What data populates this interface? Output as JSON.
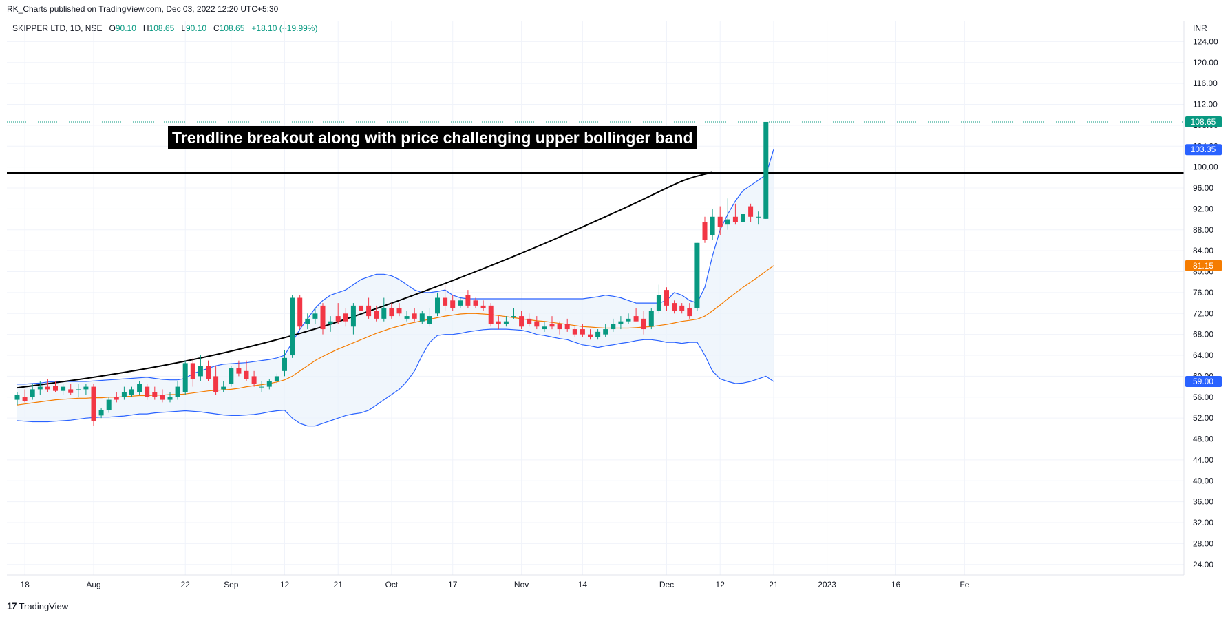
{
  "header": {
    "publisher_line": "RK_Charts published on TradingView.com, Dec 03, 2022 12:20 UTC+5:30",
    "currency": "INR"
  },
  "legend": {
    "symbol": "SKIPPER LTD, 1D, NSE",
    "open_label": "O",
    "open": "90.10",
    "high_label": "H",
    "high": "108.65",
    "low_label": "L",
    "low": "90.10",
    "close_label": "C",
    "close": "108.65",
    "change": "+18.10 (+19.99%)"
  },
  "footer": {
    "brand": "TradingView",
    "logo_glyph": "17"
  },
  "colors": {
    "up": "#089981",
    "down": "#f23645",
    "bb": "#2962ff",
    "bb_fill": "#eaf2fb",
    "basis": "#f57c00",
    "trend": "#000000",
    "grid": "#f0f3fa"
  },
  "chart_data": {
    "type": "candlestick",
    "title": "Trendline breakout along with price challenging upper bollinger band",
    "ylim": [
      22,
      128
    ],
    "y_ticks": [
      "24.00",
      "28.00",
      "32.00",
      "36.00",
      "40.00",
      "44.00",
      "48.00",
      "52.00",
      "56.00",
      "60.00",
      "64.00",
      "68.00",
      "72.00",
      "76.00",
      "80.00",
      "84.00",
      "88.00",
      "92.00",
      "96.00",
      "100.00",
      "104.00",
      "108.00",
      "112.00",
      "116.00",
      "120.00",
      "124.00"
    ],
    "x_ticks": [
      {
        "label": "18",
        "i": 1
      },
      {
        "label": "Aug",
        "i": 10
      },
      {
        "label": "22",
        "i": 22
      },
      {
        "label": "Sep",
        "i": 28
      },
      {
        "label": "12",
        "i": 35
      },
      {
        "label": "21",
        "i": 42
      },
      {
        "label": "Oct",
        "i": 49
      },
      {
        "label": "17",
        "i": 57
      },
      {
        "label": "Nov",
        "i": 66
      },
      {
        "label": "14",
        "i": 74
      },
      {
        "label": "Dec",
        "i": 85
      },
      {
        "label": "12",
        "i": 92
      },
      {
        "label": "21",
        "i": 99
      },
      {
        "label": "2023",
        "i": 106
      },
      {
        "label": "16",
        "i": 115
      },
      {
        "label": "Fe",
        "i": 124
      }
    ],
    "price_labels": [
      {
        "text": "108.65",
        "value": 108.65,
        "color": "#089981"
      },
      {
        "text": "103.35",
        "value": 103.35,
        "color": "#2962ff"
      },
      {
        "text": "81.15",
        "value": 81.15,
        "color": "#f57c00"
      },
      {
        "text": "59.00",
        "value": 59.0,
        "color": "#2962ff"
      }
    ],
    "horizontal_line": 98.9,
    "dotted_close": 108.65,
    "candles": [
      {
        "o": 55.5,
        "h": 57.0,
        "l": 54.5,
        "c": 56.5
      },
      {
        "o": 56.0,
        "h": 57.5,
        "l": 55.0,
        "c": 55.2
      },
      {
        "o": 56.0,
        "h": 58.5,
        "l": 55.5,
        "c": 57.5
      },
      {
        "o": 57.5,
        "h": 59.0,
        "l": 56.5,
        "c": 58.0
      },
      {
        "o": 58.0,
        "h": 59.5,
        "l": 57.0,
        "c": 57.5
      },
      {
        "o": 58.2,
        "h": 59.0,
        "l": 57.0,
        "c": 57.2
      },
      {
        "o": 57.2,
        "h": 58.5,
        "l": 56.5,
        "c": 58.0
      },
      {
        "o": 57.5,
        "h": 58.5,
        "l": 56.5,
        "c": 56.8
      },
      {
        "o": 57.5,
        "h": 58.5,
        "l": 56.0,
        "c": 57.5
      },
      {
        "o": 57.5,
        "h": 58.5,
        "l": 56.5,
        "c": 58.0
      },
      {
        "o": 58.0,
        "h": 58.5,
        "l": 50.5,
        "c": 51.5
      },
      {
        "o": 52.5,
        "h": 54.0,
        "l": 52.0,
        "c": 53.5
      },
      {
        "o": 53.5,
        "h": 56.0,
        "l": 53.0,
        "c": 55.5
      },
      {
        "o": 56.0,
        "h": 57.0,
        "l": 55.0,
        "c": 55.5
      },
      {
        "o": 56.0,
        "h": 58.0,
        "l": 55.5,
        "c": 57.0
      },
      {
        "o": 56.5,
        "h": 58.0,
        "l": 56.0,
        "c": 57.5
      },
      {
        "o": 57.0,
        "h": 59.0,
        "l": 56.5,
        "c": 58.5
      },
      {
        "o": 58.0,
        "h": 58.5,
        "l": 55.5,
        "c": 56.0
      },
      {
        "o": 57.0,
        "h": 58.0,
        "l": 55.5,
        "c": 56.0
      },
      {
        "o": 56.5,
        "h": 57.5,
        "l": 55.0,
        "c": 55.5
      },
      {
        "o": 55.5,
        "h": 57.0,
        "l": 55.0,
        "c": 56.0
      },
      {
        "o": 56.0,
        "h": 59.0,
        "l": 55.5,
        "c": 58.0
      },
      {
        "o": 57.0,
        "h": 63.0,
        "l": 56.5,
        "c": 62.5
      },
      {
        "o": 62.5,
        "h": 63.5,
        "l": 58.0,
        "c": 59.5
      },
      {
        "o": 60.0,
        "h": 64.0,
        "l": 59.0,
        "c": 62.0
      },
      {
        "o": 62.0,
        "h": 63.0,
        "l": 59.0,
        "c": 59.5
      },
      {
        "o": 60.0,
        "h": 62.0,
        "l": 56.5,
        "c": 57.0
      },
      {
        "o": 57.5,
        "h": 59.0,
        "l": 57.0,
        "c": 58.0
      },
      {
        "o": 58.5,
        "h": 62.0,
        "l": 58.0,
        "c": 61.5
      },
      {
        "o": 61.5,
        "h": 63.0,
        "l": 60.0,
        "c": 60.5
      },
      {
        "o": 61.0,
        "h": 63.0,
        "l": 59.0,
        "c": 59.5
      },
      {
        "o": 60.0,
        "h": 61.0,
        "l": 58.0,
        "c": 58.5
      },
      {
        "o": 58.0,
        "h": 59.0,
        "l": 57.0,
        "c": 58.0
      },
      {
        "o": 58.0,
        "h": 59.5,
        "l": 57.5,
        "c": 59.0
      },
      {
        "o": 59.0,
        "h": 60.5,
        "l": 58.5,
        "c": 60.0
      },
      {
        "o": 61.0,
        "h": 65.0,
        "l": 60.0,
        "c": 63.5
      },
      {
        "o": 64.0,
        "h": 75.5,
        "l": 63.5,
        "c": 75.0
      },
      {
        "o": 75.0,
        "h": 75.5,
        "l": 69.0,
        "c": 69.5
      },
      {
        "o": 70.0,
        "h": 72.0,
        "l": 69.0,
        "c": 71.0
      },
      {
        "o": 71.0,
        "h": 73.0,
        "l": 70.0,
        "c": 72.0
      },
      {
        "o": 73.5,
        "h": 74.0,
        "l": 68.0,
        "c": 69.0
      },
      {
        "o": 70.0,
        "h": 71.5,
        "l": 68.5,
        "c": 70.5
      },
      {
        "o": 71.5,
        "h": 74.0,
        "l": 70.0,
        "c": 70.5
      },
      {
        "o": 72.0,
        "h": 73.0,
        "l": 69.5,
        "c": 70.5
      },
      {
        "o": 69.5,
        "h": 74.0,
        "l": 68.0,
        "c": 73.5
      },
      {
        "o": 73.5,
        "h": 75.0,
        "l": 71.5,
        "c": 72.5
      },
      {
        "o": 73.5,
        "h": 75.0,
        "l": 71.0,
        "c": 71.5
      },
      {
        "o": 72.5,
        "h": 73.5,
        "l": 70.5,
        "c": 71.0
      },
      {
        "o": 71.0,
        "h": 75.0,
        "l": 70.5,
        "c": 73.0
      },
      {
        "o": 73.0,
        "h": 74.0,
        "l": 71.0,
        "c": 71.5
      },
      {
        "o": 73.0,
        "h": 74.0,
        "l": 71.5,
        "c": 72.0
      },
      {
        "o": 71.0,
        "h": 72.5,
        "l": 70.5,
        "c": 71.5
      },
      {
        "o": 72.0,
        "h": 73.0,
        "l": 70.5,
        "c": 71.0
      },
      {
        "o": 70.5,
        "h": 72.5,
        "l": 70.0,
        "c": 72.0
      },
      {
        "o": 70.0,
        "h": 73.0,
        "l": 69.5,
        "c": 71.5
      },
      {
        "o": 72.0,
        "h": 76.0,
        "l": 71.5,
        "c": 75.0
      },
      {
        "o": 75.0,
        "h": 77.5,
        "l": 72.5,
        "c": 73.5
      },
      {
        "o": 74.5,
        "h": 75.5,
        "l": 72.5,
        "c": 73.0
      },
      {
        "o": 73.5,
        "h": 75.0,
        "l": 73.0,
        "c": 74.5
      },
      {
        "o": 75.5,
        "h": 76.5,
        "l": 73.0,
        "c": 73.5
      },
      {
        "o": 74.5,
        "h": 75.0,
        "l": 73.0,
        "c": 73.5
      },
      {
        "o": 73.5,
        "h": 74.5,
        "l": 72.5,
        "c": 73.0
      },
      {
        "o": 73.5,
        "h": 74.0,
        "l": 69.5,
        "c": 70.0
      },
      {
        "o": 70.5,
        "h": 71.5,
        "l": 69.0,
        "c": 70.0
      },
      {
        "o": 70.0,
        "h": 71.5,
        "l": 69.5,
        "c": 70.5
      },
      {
        "o": 71.5,
        "h": 73.0,
        "l": 71.0,
        "c": 71.5
      },
      {
        "o": 71.5,
        "h": 72.5,
        "l": 69.0,
        "c": 69.5
      },
      {
        "o": 71.0,
        "h": 72.0,
        "l": 69.5,
        "c": 70.0
      },
      {
        "o": 70.5,
        "h": 71.5,
        "l": 69.0,
        "c": 69.5
      },
      {
        "o": 69.0,
        "h": 70.5,
        "l": 68.5,
        "c": 69.5
      },
      {
        "o": 70.0,
        "h": 71.5,
        "l": 69.0,
        "c": 69.5
      },
      {
        "o": 70.0,
        "h": 70.5,
        "l": 68.0,
        "c": 69.0
      },
      {
        "o": 70.0,
        "h": 71.0,
        "l": 68.5,
        "c": 69.0
      },
      {
        "o": 69.0,
        "h": 69.5,
        "l": 67.5,
        "c": 68.0
      },
      {
        "o": 69.0,
        "h": 70.0,
        "l": 67.5,
        "c": 68.0
      },
      {
        "o": 68.0,
        "h": 69.0,
        "l": 67.0,
        "c": 67.5
      },
      {
        "o": 67.5,
        "h": 69.0,
        "l": 67.0,
        "c": 68.5
      },
      {
        "o": 68.0,
        "h": 70.0,
        "l": 67.5,
        "c": 69.0
      },
      {
        "o": 69.0,
        "h": 71.0,
        "l": 68.5,
        "c": 70.0
      },
      {
        "o": 70.0,
        "h": 71.5,
        "l": 69.0,
        "c": 70.5
      },
      {
        "o": 70.5,
        "h": 72.0,
        "l": 70.0,
        "c": 71.0
      },
      {
        "o": 71.5,
        "h": 73.0,
        "l": 70.5,
        "c": 70.5
      },
      {
        "o": 71.0,
        "h": 72.5,
        "l": 68.0,
        "c": 69.0
      },
      {
        "o": 69.5,
        "h": 73.0,
        "l": 69.0,
        "c": 72.5
      },
      {
        "o": 72.5,
        "h": 77.5,
        "l": 72.0,
        "c": 75.5
      },
      {
        "o": 76.5,
        "h": 77.0,
        "l": 72.5,
        "c": 73.5
      },
      {
        "o": 74.0,
        "h": 74.5,
        "l": 72.0,
        "c": 72.5
      },
      {
        "o": 73.5,
        "h": 74.0,
        "l": 72.0,
        "c": 72.5
      },
      {
        "o": 73.0,
        "h": 74.0,
        "l": 71.0,
        "c": 71.5
      },
      {
        "o": 73.0,
        "h": 85.5,
        "l": 72.5,
        "c": 85.5
      },
      {
        "o": 89.5,
        "h": 90.5,
        "l": 85.5,
        "c": 86.0
      },
      {
        "o": 87.0,
        "h": 92.0,
        "l": 86.0,
        "c": 90.5
      },
      {
        "o": 90.5,
        "h": 92.5,
        "l": 87.0,
        "c": 88.5
      },
      {
        "o": 89.0,
        "h": 94.0,
        "l": 88.0,
        "c": 90.0
      },
      {
        "o": 90.5,
        "h": 93.0,
        "l": 89.0,
        "c": 89.5
      },
      {
        "o": 89.5,
        "h": 93.5,
        "l": 88.5,
        "c": 91.0
      },
      {
        "o": 92.5,
        "h": 93.0,
        "l": 89.5,
        "c": 90.5
      },
      {
        "o": 90.5,
        "h": 91.5,
        "l": 89.0,
        "c": 90.5
      },
      {
        "o": 90.1,
        "h": 108.65,
        "l": 90.1,
        "c": 108.65
      }
    ],
    "series": [
      {
        "name": "BB upper",
        "values": [
          58.5,
          58.5,
          58.6,
          58.7,
          58.9,
          59.0,
          59.0,
          59.0,
          59.0,
          59.0,
          59.1,
          59.2,
          59.3,
          59.4,
          59.5,
          59.6,
          59.7,
          59.8,
          59.6,
          59.4,
          59.3,
          59.3,
          59.6,
          60.5,
          61.0,
          61.5,
          62.0,
          62.3,
          62.4,
          62.5,
          62.6,
          62.8,
          63.0,
          63.2,
          63.5,
          64.0,
          66.5,
          69.0,
          71.0,
          73.0,
          74.5,
          75.5,
          76.0,
          76.5,
          77.5,
          78.5,
          79.0,
          79.5,
          79.5,
          79.2,
          78.5,
          77.5,
          76.5,
          76.0,
          76.0,
          76.2,
          76.5,
          75.5,
          75.0,
          74.8,
          74.8,
          74.8,
          74.8,
          74.8,
          74.8,
          74.8,
          74.8,
          74.8,
          74.8,
          74.8,
          74.8,
          74.8,
          74.8,
          74.8,
          74.8,
          75.0,
          75.2,
          75.5,
          75.3,
          75.0,
          74.5,
          74.0,
          74.0,
          74.0,
          74.0,
          74.5,
          76.0,
          75.5,
          74.5,
          74.0,
          77.0,
          83.0,
          88.0,
          91.0,
          93.5,
          95.5,
          96.5,
          97.5,
          98.5,
          103.35
        ]
      },
      {
        "name": "BB basis",
        "values": [
          54.5,
          54.7,
          54.9,
          55.1,
          55.3,
          55.5,
          55.6,
          55.7,
          55.8,
          55.8,
          55.9,
          55.9,
          56.0,
          56.0,
          56.1,
          56.2,
          56.3,
          56.3,
          56.4,
          56.4,
          56.5,
          56.5,
          56.6,
          56.8,
          57.0,
          57.2,
          57.3,
          57.4,
          57.5,
          57.7,
          58.0,
          58.2,
          58.4,
          58.6,
          58.9,
          59.3,
          60.0,
          61.0,
          62.0,
          63.0,
          63.8,
          64.5,
          65.2,
          65.8,
          66.4,
          67.0,
          67.6,
          68.2,
          68.7,
          69.2,
          69.6,
          70.0,
          70.3,
          70.6,
          70.9,
          71.2,
          71.5,
          71.7,
          71.9,
          72.0,
          72.0,
          71.9,
          71.8,
          71.6,
          71.4,
          71.2,
          71.0,
          70.8,
          70.6,
          70.5,
          70.3,
          70.1,
          69.9,
          69.7,
          69.5,
          69.4,
          69.3,
          69.2,
          69.2,
          69.2,
          69.2,
          69.3,
          69.4,
          69.5,
          69.7,
          69.9,
          70.2,
          70.5,
          70.7,
          70.9,
          71.5,
          72.5,
          73.6,
          74.8,
          75.9,
          77.0,
          78.0,
          79.0,
          80.1,
          81.15
        ]
      },
      {
        "name": "BB lower",
        "values": [
          51.5,
          51.4,
          51.3,
          51.3,
          51.3,
          51.4,
          51.5,
          51.6,
          51.8,
          52.0,
          52.1,
          52.2,
          52.2,
          52.3,
          52.4,
          52.6,
          52.8,
          52.8,
          53.0,
          53.1,
          53.2,
          53.3,
          53.4,
          53.3,
          53.2,
          53.0,
          52.8,
          52.6,
          52.5,
          52.5,
          52.6,
          52.7,
          52.9,
          53.2,
          53.4,
          53.5,
          52.0,
          51.0,
          50.5,
          50.5,
          51.0,
          51.5,
          52.0,
          52.5,
          52.8,
          53.0,
          53.5,
          54.5,
          55.5,
          56.5,
          57.5,
          59.0,
          61.0,
          64.0,
          66.5,
          67.8,
          68.0,
          68.0,
          68.2,
          68.5,
          68.7,
          68.9,
          69.0,
          69.0,
          69.0,
          68.9,
          68.8,
          68.5,
          68.0,
          67.8,
          67.5,
          67.2,
          67.0,
          66.5,
          66.0,
          65.8,
          65.5,
          65.8,
          66.0,
          66.3,
          66.5,
          66.8,
          67.0,
          67.0,
          66.8,
          66.5,
          66.5,
          66.3,
          66.5,
          66.5,
          64.0,
          61.0,
          59.5,
          59.0,
          58.6,
          58.7,
          59.0,
          59.5,
          60.0,
          59.0
        ]
      }
    ],
    "trendline": {
      "points": [
        [
          0,
          57.8
        ],
        [
          10,
          59.8
        ],
        [
          20,
          62.3
        ],
        [
          30,
          65.5
        ],
        [
          40,
          69.5
        ],
        [
          50,
          74.5
        ],
        [
          60,
          80.0
        ],
        [
          70,
          86.0
        ],
        [
          80,
          92.5
        ],
        [
          87,
          97.3
        ],
        [
          91,
          99.0
        ]
      ]
    }
  }
}
